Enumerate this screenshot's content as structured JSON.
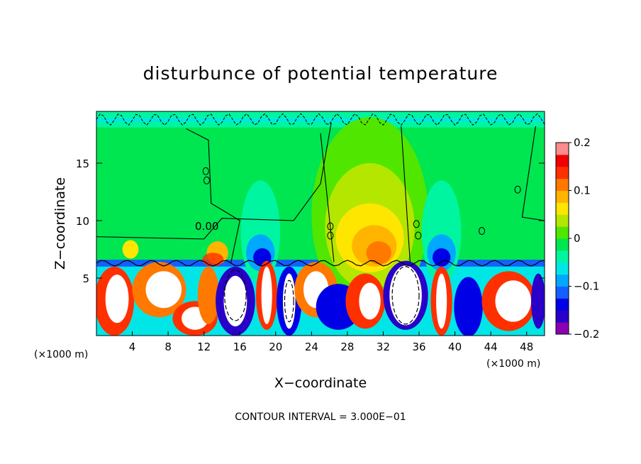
{
  "chart_data": {
    "type": "heatmap",
    "title": "disturbunce of potential temperature",
    "xlabel": "X−coordinate",
    "ylabel": "Z−coordinate",
    "x_unit": "(×1000 m)",
    "y_unit": "(×1000 m)",
    "xlim": [
      0,
      50
    ],
    "ylim": [
      0,
      19.5
    ],
    "x_ticks": [
      4,
      8,
      12,
      16,
      20,
      24,
      28,
      32,
      36,
      40,
      44,
      48
    ],
    "y_ticks": [
      5,
      10,
      15
    ],
    "colorbar": {
      "ticks": [
        0.2,
        0.1,
        0,
        -0.1,
        -0.2
      ],
      "tick_labels": [
        "0.2",
        "0.1",
        "0",
        "−0.1",
        "−0.2"
      ],
      "range": [
        -0.2,
        0.2
      ],
      "colors": [
        "#8c00b4",
        "#2800c8",
        "#0000e6",
        "#1460ff",
        "#00a8ff",
        "#00e6e6",
        "#00f5a0",
        "#00e650",
        "#50e600",
        "#b4e600",
        "#ffe600",
        "#ffb400",
        "#ff7800",
        "#ff3000",
        "#f00000",
        "#ff8c8c"
      ]
    },
    "contour_labels": [
      "0.00"
    ],
    "annotation": "CONTOUR INTERVAL = 3.000E−01",
    "grid": false
  }
}
